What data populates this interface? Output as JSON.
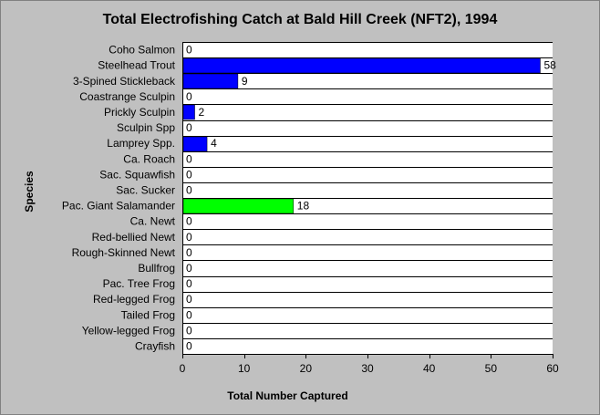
{
  "chart_data": {
    "type": "bar",
    "orientation": "horizontal",
    "title": "Total Electrofishing Catch at  Bald Hill Creek (NFT2), 1994",
    "xlabel": "Total Number Captured",
    "ylabel": "Species",
    "xlim": [
      0,
      60
    ],
    "xticks": [
      0,
      10,
      20,
      30,
      40,
      50,
      60
    ],
    "grid": "horizontal",
    "categories": [
      "Coho Salmon",
      "Steelhead Trout",
      "3-Spined Stickleback",
      "Coastrange Sculpin",
      "Prickly Sculpin",
      "Sculpin Spp",
      "Lamprey Spp.",
      "Ca. Roach",
      "Sac. Squawfish",
      "Sac. Sucker",
      "Pac. Giant Salamander",
      "Ca. Newt",
      "Red-bellied Newt",
      "Rough-Skinned Newt",
      "Bullfrog",
      "Pac. Tree Frog",
      "Red-legged Frog",
      "Tailed Frog",
      "Yellow-legged Frog",
      "Crayfish"
    ],
    "values": [
      0,
      58,
      9,
      0,
      2,
      0,
      4,
      0,
      0,
      0,
      18,
      0,
      0,
      0,
      0,
      0,
      0,
      0,
      0,
      0
    ],
    "bar_colors": [
      "#0000ff",
      "#0000ff",
      "#0000ff",
      "#0000ff",
      "#0000ff",
      "#0000ff",
      "#0000ff",
      "#0000ff",
      "#0000ff",
      "#0000ff",
      "#00ff00",
      "#0000ff",
      "#0000ff",
      "#0000ff",
      "#0000ff",
      "#0000ff",
      "#0000ff",
      "#0000ff",
      "#0000ff",
      "#0000ff"
    ]
  }
}
